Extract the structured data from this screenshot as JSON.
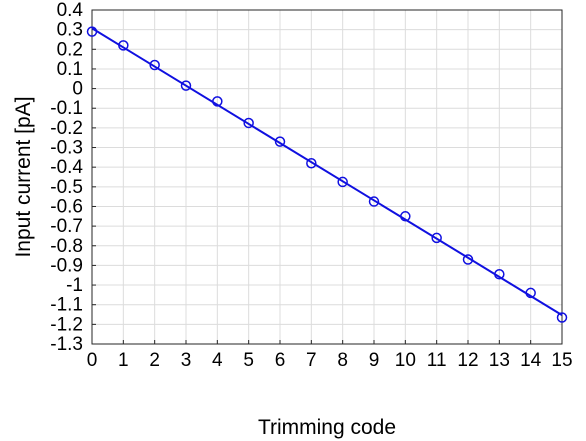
{
  "chart_data": {
    "type": "line",
    "xlabel": "Trimming code",
    "ylabel": "Input current [pA]",
    "xlim": [
      0,
      15
    ],
    "ylim": [
      -1.3,
      0.4
    ],
    "xticks": [
      0,
      1,
      2,
      3,
      4,
      5,
      6,
      7,
      8,
      9,
      10,
      11,
      12,
      13,
      14,
      15
    ],
    "yticks": [
      0.4,
      0.3,
      0.2,
      0.1,
      0,
      -0.1,
      -0.2,
      -0.3,
      -0.4,
      -0.5,
      -0.6,
      -0.7,
      -0.8,
      -0.9,
      -1,
      -1.1,
      -1.2,
      -1.3
    ],
    "xtick_labels": [
      "0",
      "1",
      "2",
      "3",
      "4",
      "5",
      "6",
      "7",
      "8",
      "9",
      "10",
      "11",
      "12",
      "13",
      "14",
      "15"
    ],
    "ytick_labels": [
      "0.4",
      "0.3",
      "0.2",
      "0.1",
      "0",
      "-0.1",
      "-0.2",
      "-0.3",
      "-0.4",
      "-0.5",
      "-0.6",
      "-0.7",
      "-0.8",
      "-0.9",
      "-1",
      "-1.1",
      "-1.2",
      "-1.3"
    ],
    "grid": true,
    "series": [
      {
        "marker": "circle-open",
        "color": "#1010e0",
        "x": [
          0,
          1,
          2,
          3,
          4,
          5,
          6,
          7,
          8,
          9,
          10,
          11,
          12,
          13,
          14,
          15
        ],
        "y": [
          0.29,
          0.22,
          0.12,
          0.015,
          -0.065,
          -0.175,
          -0.27,
          -0.38,
          -0.475,
          -0.575,
          -0.65,
          -0.76,
          -0.87,
          -0.945,
          -1.04,
          -1.165
        ]
      }
    ],
    "fit_line": {
      "color": "#1010e0",
      "x": [
        0,
        15
      ],
      "y": [
        0.307,
        -1.153
      ]
    }
  }
}
